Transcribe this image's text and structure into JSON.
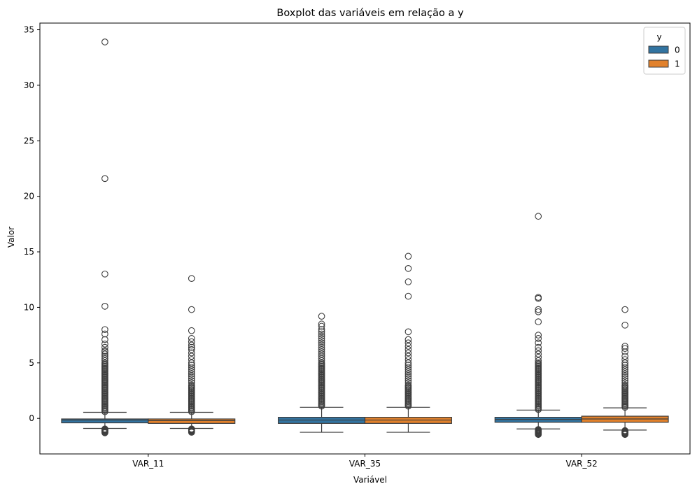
{
  "chart_data": {
    "type": "boxplot",
    "title": "Boxplot das variáveis em relação a y",
    "xlabel": "Variável",
    "ylabel": "Valor",
    "ylim": [
      -3.2,
      35.6
    ],
    "yticks": [
      0,
      5,
      10,
      15,
      20,
      25,
      30,
      35
    ],
    "categories": [
      "VAR_11",
      "VAR_35",
      "VAR_52"
    ],
    "legend": {
      "title": "y",
      "placement": "top-right"
    },
    "series": [
      {
        "name": "0",
        "color": "#3274a1",
        "boxes": [
          {
            "whisker_low": -0.9,
            "q1": -0.4,
            "median": -0.15,
            "q3": -0.05,
            "whisker_high": 0.55,
            "outliers_high": [
              0.6,
              0.7,
              0.8,
              0.9,
              1.0,
              1.1,
              1.2,
              1.3,
              1.4,
              1.5,
              1.6,
              1.7,
              1.8,
              1.9,
              2.0,
              2.1,
              2.2,
              2.3,
              2.4,
              2.5,
              2.6,
              2.7,
              2.8,
              2.9,
              3.0,
              3.1,
              3.2,
              3.3,
              3.4,
              3.5,
              3.6,
              3.7,
              3.8,
              3.9,
              4.0,
              4.1,
              4.2,
              4.3,
              4.4,
              4.5,
              4.6,
              4.7,
              4.8,
              4.9,
              5.0,
              5.2,
              5.4,
              5.6,
              5.8,
              6.0,
              6.1,
              6.4,
              6.7,
              7.1,
              7.6,
              8.0,
              10.1,
              13.0,
              21.6,
              33.9
            ],
            "outliers_low": [
              -0.95,
              -1.0,
              -1.05,
              -1.1,
              -1.15,
              -1.2,
              -1.25,
              -1.3
            ]
          },
          {
            "whisker_low": -1.25,
            "q1": -0.45,
            "median": -0.15,
            "q3": 0.1,
            "whisker_high": 1.0,
            "outliers_high": [
              1.1,
              1.2,
              1.3,
              1.4,
              1.5,
              1.6,
              1.7,
              1.8,
              1.9,
              2.0,
              2.1,
              2.2,
              2.3,
              2.4,
              2.5,
              2.6,
              2.7,
              2.8,
              2.9,
              3.0,
              3.1,
              3.2,
              3.3,
              3.4,
              3.5,
              3.6,
              3.7,
              3.8,
              3.9,
              4.0,
              4.1,
              4.2,
              4.3,
              4.4,
              4.5,
              4.6,
              4.7,
              4.8,
              4.9,
              5.0,
              5.2,
              5.4,
              5.6,
              5.8,
              6.0,
              6.2,
              6.4,
              6.6,
              6.8,
              7.0,
              7.2,
              7.4,
              7.6,
              7.8,
              8.0,
              8.3,
              8.5,
              9.2
            ],
            "outliers_low": []
          },
          {
            "whisker_low": -0.95,
            "q1": -0.35,
            "median": -0.1,
            "q3": 0.1,
            "whisker_high": 0.75,
            "outliers_high": [
              0.8,
              0.9,
              1.0,
              1.1,
              1.2,
              1.3,
              1.4,
              1.5,
              1.6,
              1.7,
              1.8,
              1.9,
              2.0,
              2.1,
              2.2,
              2.3,
              2.4,
              2.5,
              2.6,
              2.7,
              2.8,
              2.9,
              3.0,
              3.1,
              3.2,
              3.3,
              3.4,
              3.5,
              3.6,
              3.7,
              3.8,
              3.9,
              4.0,
              4.1,
              4.2,
              4.3,
              4.4,
              4.5,
              4.6,
              4.7,
              4.8,
              4.9,
              5.0,
              5.2,
              5.5,
              5.8,
              6.1,
              6.4,
              6.8,
              7.2,
              7.5,
              8.7,
              9.6,
              9.8,
              10.8,
              10.9,
              18.2
            ],
            "outliers_low": [
              -1.0,
              -1.05,
              -1.1,
              -1.15,
              -1.2,
              -1.25,
              -1.3,
              -1.35,
              -1.4,
              -1.45
            ]
          }
        ]
      },
      {
        "name": "1",
        "color": "#e1812c",
        "boxes": [
          {
            "whisker_low": -0.9,
            "q1": -0.45,
            "median": -0.2,
            "q3": -0.05,
            "whisker_high": 0.55,
            "outliers_high": [
              0.6,
              0.7,
              0.8,
              0.9,
              1.0,
              1.1,
              1.2,
              1.3,
              1.4,
              1.5,
              1.6,
              1.7,
              1.8,
              1.9,
              2.0,
              2.1,
              2.2,
              2.3,
              2.4,
              2.5,
              2.6,
              2.7,
              2.8,
              2.9,
              3.0,
              3.2,
              3.4,
              3.6,
              3.8,
              4.0,
              4.2,
              4.4,
              4.6,
              4.8,
              5.0,
              5.3,
              5.6,
              5.9,
              6.2,
              6.4,
              6.6,
              6.9,
              7.2,
              7.9,
              9.8,
              12.6
            ],
            "outliers_low": [
              -0.95,
              -1.0,
              -1.05,
              -1.1,
              -1.15,
              -1.2,
              -1.25
            ]
          },
          {
            "whisker_low": -1.25,
            "q1": -0.45,
            "median": -0.15,
            "q3": 0.1,
            "whisker_high": 1.0,
            "outliers_high": [
              1.1,
              1.2,
              1.3,
              1.4,
              1.5,
              1.6,
              1.7,
              1.8,
              1.9,
              2.0,
              2.1,
              2.2,
              2.3,
              2.4,
              2.5,
              2.6,
              2.7,
              2.8,
              2.9,
              3.0,
              3.2,
              3.4,
              3.6,
              3.8,
              4.0,
              4.2,
              4.4,
              4.6,
              4.8,
              5.0,
              5.3,
              5.6,
              5.9,
              6.2,
              6.5,
              6.8,
              7.1,
              7.8,
              11.0,
              12.3,
              13.5,
              14.6
            ],
            "outliers_low": []
          },
          {
            "whisker_low": -1.05,
            "q1": -0.35,
            "median": -0.05,
            "q3": 0.2,
            "whisker_high": 0.95,
            "outliers_high": [
              1.0,
              1.1,
              1.2,
              1.3,
              1.4,
              1.5,
              1.6,
              1.7,
              1.8,
              1.9,
              2.0,
              2.1,
              2.2,
              2.3,
              2.4,
              2.5,
              2.6,
              2.7,
              2.8,
              2.9,
              3.0,
              3.2,
              3.4,
              3.6,
              3.8,
              4.0,
              4.2,
              4.4,
              4.6,
              4.8,
              5.0,
              5.3,
              5.6,
              6.0,
              6.3,
              6.5,
              8.4,
              9.8
            ],
            "outliers_low": [
              -1.1,
              -1.15,
              -1.2,
              -1.25,
              -1.3,
              -1.35,
              -1.4,
              -1.45
            ]
          }
        ]
      }
    ]
  }
}
